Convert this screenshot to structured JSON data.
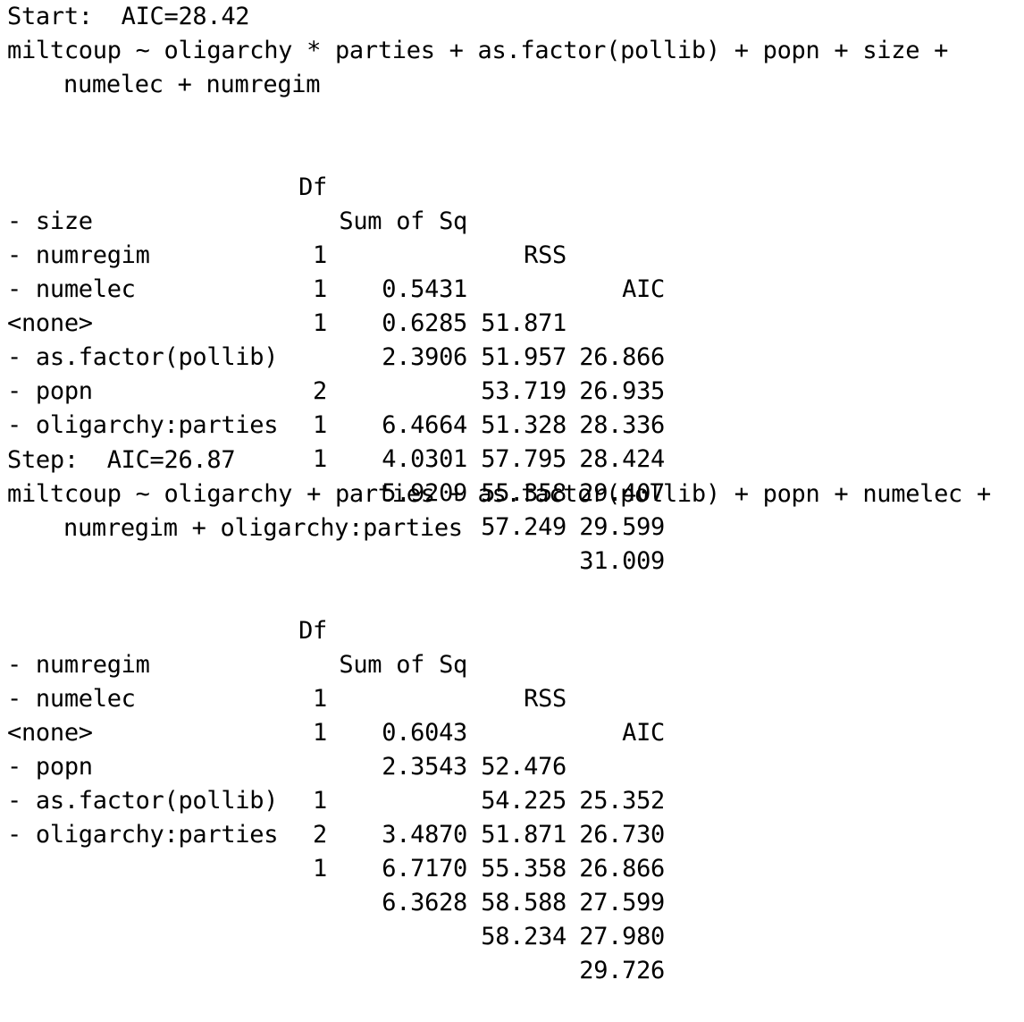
{
  "blocks": [
    {
      "header": "Start:  AIC=28.42",
      "formula_line1": "miltcoup ~ oligarchy * parties + as.factor(pollib) + popn + size +",
      "formula_line2": "numelec + numregim",
      "columns": {
        "df": "Df",
        "sumsq": "Sum of Sq",
        "rss": "RSS",
        "aic": "AIC"
      },
      "rows": [
        {
          "term": "- size",
          "df": "1",
          "sumsq": "0.5431",
          "rss": "51.871",
          "aic": "26.866"
        },
        {
          "term": "- numregim",
          "df": "1",
          "sumsq": "0.6285",
          "rss": "51.957",
          "aic": "26.935"
        },
        {
          "term": "- numelec",
          "df": "1",
          "sumsq": "2.3906",
          "rss": "53.719",
          "aic": "28.336"
        },
        {
          "term": "<none>",
          "df": "",
          "sumsq": "",
          "rss": "51.328",
          "aic": "28.424"
        },
        {
          "term": "- as.factor(pollib)",
          "df": "2",
          "sumsq": "6.4664",
          "rss": "57.795",
          "aic": "29.407"
        },
        {
          "term": "- popn",
          "df": "1",
          "sumsq": "4.0301",
          "rss": "55.358",
          "aic": "29.599"
        },
        {
          "term": "- oligarchy:parties",
          "df": "1",
          "sumsq": "5.9209",
          "rss": "57.249",
          "aic": "31.009"
        }
      ]
    },
    {
      "header": "Step:  AIC=26.87",
      "formula_line1": "miltcoup ~ oligarchy + parties + as.factor(pollib) + popn + numelec +",
      "formula_line2": "numregim + oligarchy:parties",
      "columns": {
        "df": "Df",
        "sumsq": "Sum of Sq",
        "rss": "RSS",
        "aic": "AIC"
      },
      "rows": [
        {
          "term": "- numregim",
          "df": "1",
          "sumsq": "0.6043",
          "rss": "52.476",
          "aic": "25.352"
        },
        {
          "term": "- numelec",
          "df": "1",
          "sumsq": "2.3543",
          "rss": "54.225",
          "aic": "26.730"
        },
        {
          "term": "<none>",
          "df": "",
          "sumsq": "",
          "rss": "51.871",
          "aic": "26.866"
        },
        {
          "term": "- popn",
          "df": "1",
          "sumsq": "3.4870",
          "rss": "55.358",
          "aic": "27.599"
        },
        {
          "term": "- as.factor(pollib)",
          "df": "2",
          "sumsq": "6.7170",
          "rss": "58.588",
          "aic": "27.980"
        },
        {
          "term": "- oligarchy:parties",
          "df": "1",
          "sumsq": "6.3628",
          "rss": "58.234",
          "aic": "29.726"
        }
      ]
    }
  ]
}
